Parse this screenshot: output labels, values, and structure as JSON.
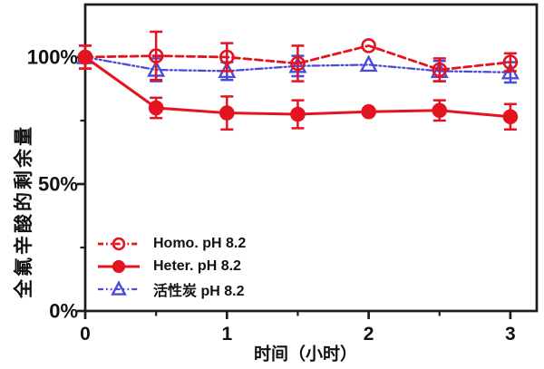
{
  "chart_data": {
    "type": "line",
    "title": "",
    "xlabel": "时间（小时）",
    "ylabel": "全氟辛酸的剩余量",
    "x": [
      0,
      0.5,
      1,
      1.5,
      2,
      2.5,
      3
    ],
    "xlim": [
      0,
      3.18
    ],
    "ylim": [
      0,
      120.7
    ],
    "grid": false,
    "legend_position": "lower-left",
    "x_ticks": [
      {
        "value": 0,
        "label": "0"
      },
      {
        "value": 1,
        "label": "1"
      },
      {
        "value": 2,
        "label": "2"
      },
      {
        "value": 3,
        "label": "3"
      }
    ],
    "x_minor_ticks": [
      0.5,
      1.5,
      2.5
    ],
    "y_ticks": [
      {
        "value": 0,
        "label": "0%"
      },
      {
        "value": 50,
        "label": "50%"
      },
      {
        "value": 100,
        "label": "100%"
      }
    ],
    "y_minor_ticks": [
      25,
      75
    ],
    "series": [
      {
        "name": "Homo. pH 8.2",
        "color": "#e31420",
        "line": "dashed",
        "marker": "open-circle",
        "values": [
          100,
          100.5,
          100,
          97.5,
          104.5,
          95,
          98
        ],
        "errors": [
          4.5,
          9.5,
          5.5,
          7,
          0,
          4.5,
          3.5
        ]
      },
      {
        "name": "Heter. pH 8.2",
        "color": "#e31420",
        "line": "solid",
        "marker": "filled-circle",
        "values": [
          100,
          80,
          78,
          77.5,
          78.5,
          79,
          76.5
        ],
        "errors": [
          4.5,
          4,
          6.5,
          5.5,
          0,
          4,
          5
        ]
      },
      {
        "name": "活性炭 pH 8.2",
        "color": "#4b4bd8",
        "line": "dash-dot",
        "marker": "open-triangle",
        "values": [
          100,
          95,
          94.5,
          96.5,
          97,
          94.5,
          94
        ],
        "errors": [
          0,
          4.5,
          3.5,
          4,
          0,
          4,
          4
        ]
      }
    ],
    "axis_color": "#1c1c1c",
    "text_color": "#111111"
  }
}
